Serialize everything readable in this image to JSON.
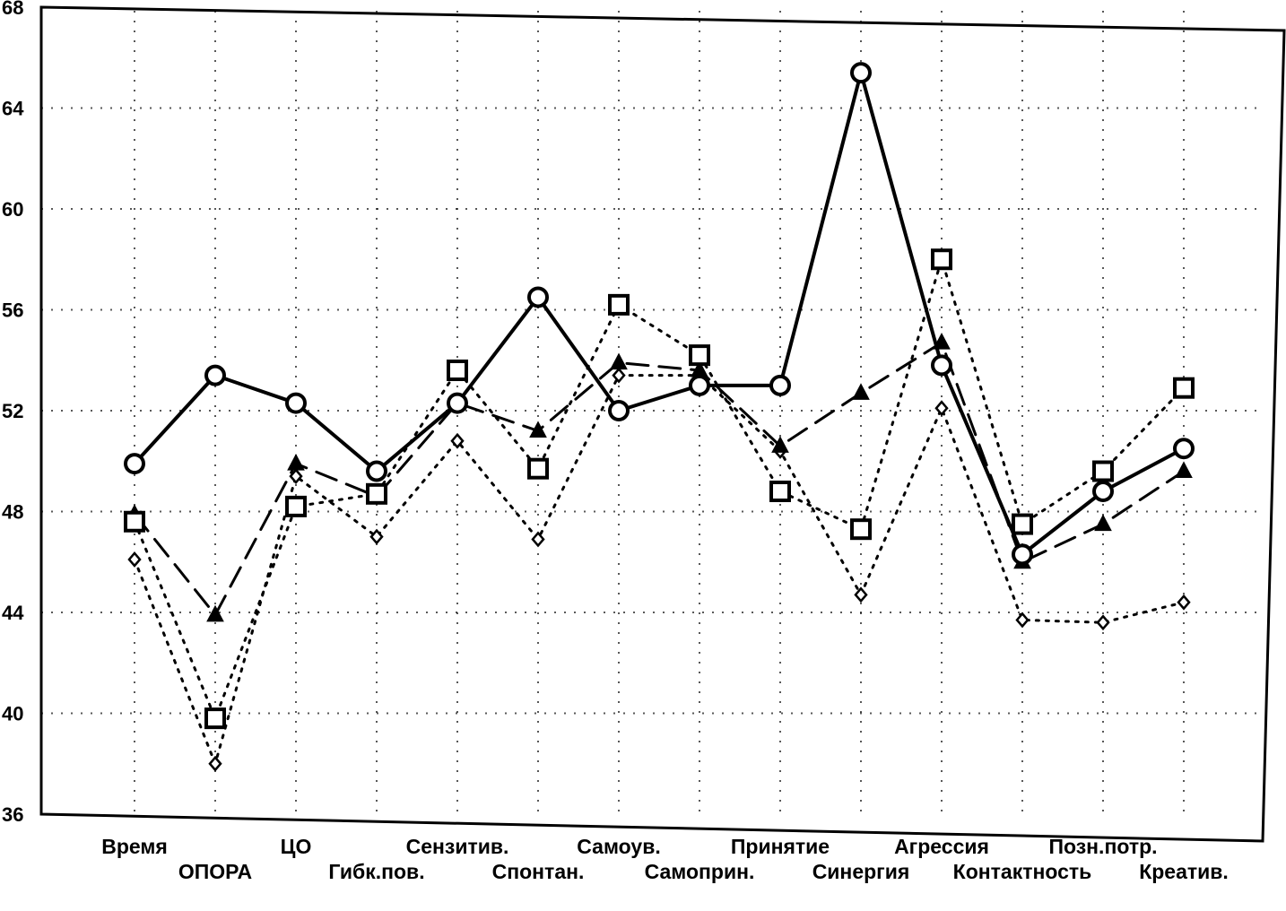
{
  "chart_data": {
    "type": "line",
    "title": "",
    "xlabel": "",
    "ylabel": "",
    "ylim": [
      36,
      68
    ],
    "yticks": [
      "36",
      "40",
      "44",
      "48",
      "52",
      "56",
      "60",
      "64",
      "68"
    ],
    "categories": [
      "Время",
      "ОПОРА",
      "ЦО",
      "Гибк.пов.",
      "Сензитив.",
      "Спонтан.",
      "Самоув.",
      "Самоприн.",
      "Принятие",
      "Синергия",
      "Агрессия",
      "Контактность",
      "Позн.потр.",
      "Креатив."
    ],
    "grid": true,
    "legend": "none",
    "series": [
      {
        "marker": "circle",
        "line_style": "solid",
        "color": "#000000",
        "values": [
          49.9,
          53.4,
          52.3,
          49.6,
          52.3,
          56.5,
          52.0,
          53.0,
          53.0,
          65.4,
          53.8,
          46.3,
          48.8,
          50.5
        ]
      },
      {
        "marker": "square",
        "line_style": "dotted",
        "color": "#000000",
        "values": [
          47.6,
          39.8,
          48.2,
          48.7,
          53.6,
          49.7,
          56.2,
          54.2,
          48.8,
          47.3,
          58.0,
          47.5,
          49.6,
          52.9
        ]
      },
      {
        "marker": "triangle",
        "line_style": "dashed",
        "color": "#000000",
        "values": [
          47.9,
          43.9,
          49.9,
          48.6,
          52.3,
          51.2,
          53.9,
          53.6,
          50.6,
          52.7,
          54.7,
          46.0,
          47.5,
          49.6
        ]
      },
      {
        "marker": "diamond",
        "line_style": "dotted",
        "color": "#000000",
        "values": [
          46.1,
          38.0,
          49.4,
          47.0,
          50.8,
          46.9,
          53.4,
          53.4,
          50.4,
          44.7,
          52.1,
          43.7,
          43.6,
          44.4
        ]
      }
    ]
  }
}
